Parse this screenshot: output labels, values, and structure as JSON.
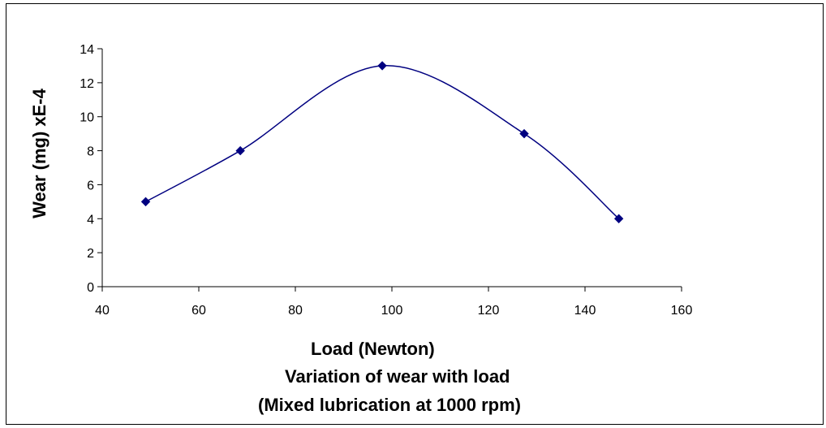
{
  "chart_data": {
    "type": "line",
    "title": "",
    "xlabel": "Load (Newton)",
    "ylabel": "Wear (mg) xE-4",
    "caption_lines": [
      "Variation of wear with load",
      "(Mixed lubrication at 1000 rpm)"
    ],
    "xlim": [
      40,
      160
    ],
    "ylim": [
      0,
      14
    ],
    "x_ticks": [
      40,
      60,
      80,
      100,
      120,
      140,
      160
    ],
    "y_ticks": [
      0,
      2,
      4,
      6,
      8,
      10,
      12,
      14
    ],
    "grid": false,
    "legend": "none",
    "smooth": true,
    "series": [
      {
        "x": [
          49,
          68.6,
          98,
          127.4,
          147
        ],
        "y": [
          5,
          8,
          13,
          9,
          4
        ]
      }
    ],
    "colors": {
      "series": "#000080",
      "axis": "#000000"
    }
  }
}
